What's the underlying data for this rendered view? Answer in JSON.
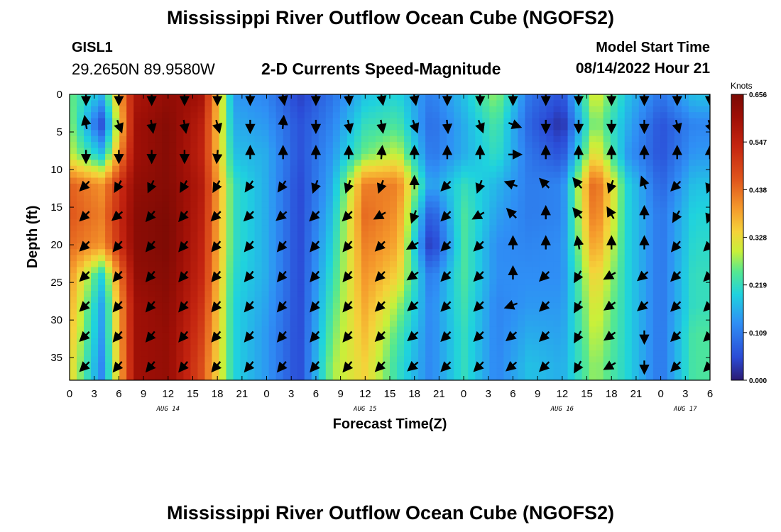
{
  "header": {
    "title": "Mississippi River Outflow Ocean Cube (NGOFS2)",
    "station_id": "GISL1",
    "station_coords": "29.2650N  89.9580W",
    "plot_title": "2-D Currents Speed-Magnitude",
    "model_start_label": "Model Start Time",
    "model_start_value": "08/14/2022 Hour 21"
  },
  "footer": {
    "title": "Mississippi River Outflow Ocean Cube (NGOFS2)"
  },
  "chart_data": {
    "type": "heatmap",
    "xlabel": "Forecast Time(Z)",
    "ylabel": "Depth (ft)",
    "x_unit": "hours since plot start",
    "xlim": [
      0,
      78
    ],
    "ylim": [
      0,
      38
    ],
    "y_inverted": true,
    "x_ticks": [
      0,
      3,
      6,
      9,
      12,
      15,
      18,
      21,
      24,
      27,
      30,
      33,
      36,
      39,
      42,
      45,
      48,
      51,
      54,
      57,
      60,
      63,
      66,
      69,
      72,
      75,
      78
    ],
    "x_tick_labels": [
      "0",
      "3",
      "6",
      "9",
      "12",
      "15",
      "18",
      "21",
      "0",
      "3",
      "6",
      "9",
      "12",
      "15",
      "18",
      "21",
      "0",
      "3",
      "6",
      "9",
      "12",
      "15",
      "18",
      "21",
      "0",
      "3",
      "6"
    ],
    "y_ticks": [
      0,
      5,
      10,
      15,
      20,
      25,
      30,
      35
    ],
    "date_labels": [
      {
        "x": 12,
        "label": "AUG 14"
      },
      {
        "x": 36,
        "label": "AUG 15"
      },
      {
        "x": 60,
        "label": "AUG 16"
      },
      {
        "x": 75,
        "label": "AUG 17"
      }
    ],
    "colorbar": {
      "title": "Knots",
      "ticks": [
        "0.656",
        "0.547",
        "0.438",
        "0.328",
        "0.219",
        "0.109",
        "0.000"
      ],
      "min": 0.0,
      "max": 0.656
    },
    "depths": [
      0,
      4,
      8,
      12,
      16,
      20,
      24,
      28,
      32,
      36
    ],
    "times": [
      0,
      4,
      8,
      12,
      16,
      20,
      24,
      28,
      32,
      36,
      40,
      44,
      48,
      52,
      56,
      60,
      64,
      68,
      72,
      76
    ],
    "speed": [
      [
        0.26,
        0.17,
        0.58,
        0.62,
        0.6,
        0.14,
        0.12,
        0.04,
        0.1,
        0.18,
        0.2,
        0.11,
        0.18,
        0.28,
        0.1,
        0.06,
        0.32,
        0.18,
        0.1,
        0.18
      ],
      [
        0.28,
        0.05,
        0.6,
        0.64,
        0.56,
        0.16,
        0.14,
        0.06,
        0.12,
        0.22,
        0.24,
        0.09,
        0.16,
        0.24,
        0.08,
        0.02,
        0.28,
        0.16,
        0.06,
        0.12
      ],
      [
        0.3,
        0.18,
        0.6,
        0.64,
        0.55,
        0.18,
        0.16,
        0.06,
        0.14,
        0.26,
        0.3,
        0.1,
        0.16,
        0.22,
        0.1,
        0.06,
        0.34,
        0.14,
        0.06,
        0.14
      ],
      [
        0.45,
        0.4,
        0.62,
        0.64,
        0.57,
        0.22,
        0.16,
        0.05,
        0.16,
        0.42,
        0.42,
        0.14,
        0.22,
        0.17,
        0.11,
        0.12,
        0.46,
        0.2,
        0.08,
        0.18
      ],
      [
        0.46,
        0.42,
        0.63,
        0.65,
        0.56,
        0.22,
        0.16,
        0.05,
        0.18,
        0.44,
        0.4,
        0.06,
        0.24,
        0.15,
        0.11,
        0.12,
        0.44,
        0.2,
        0.1,
        0.2
      ],
      [
        0.44,
        0.4,
        0.63,
        0.65,
        0.55,
        0.22,
        0.16,
        0.05,
        0.2,
        0.42,
        0.38,
        0.02,
        0.24,
        0.13,
        0.12,
        0.13,
        0.4,
        0.2,
        0.1,
        0.21
      ],
      [
        0.4,
        0.2,
        0.62,
        0.64,
        0.54,
        0.21,
        0.16,
        0.05,
        0.22,
        0.4,
        0.34,
        0.1,
        0.24,
        0.13,
        0.13,
        0.13,
        0.35,
        0.2,
        0.1,
        0.22
      ],
      [
        0.38,
        0.15,
        0.6,
        0.63,
        0.52,
        0.2,
        0.15,
        0.05,
        0.24,
        0.38,
        0.28,
        0.12,
        0.23,
        0.12,
        0.14,
        0.14,
        0.32,
        0.2,
        0.1,
        0.22
      ],
      [
        0.36,
        0.14,
        0.6,
        0.62,
        0.5,
        0.2,
        0.14,
        0.05,
        0.26,
        0.36,
        0.24,
        0.12,
        0.22,
        0.12,
        0.16,
        0.15,
        0.3,
        0.2,
        0.1,
        0.24
      ],
      [
        0.34,
        0.12,
        0.6,
        0.62,
        0.48,
        0.2,
        0.14,
        0.05,
        0.28,
        0.34,
        0.22,
        0.12,
        0.22,
        0.12,
        0.18,
        0.16,
        0.28,
        0.2,
        0.1,
        0.24
      ]
    ],
    "vector_times": [
      2,
      6,
      10,
      14,
      18,
      22,
      26,
      30,
      34,
      38,
      42,
      46,
      50,
      54,
      58,
      62,
      66,
      70,
      74,
      78
    ],
    "vector_depths": [
      0,
      4,
      8,
      12,
      16,
      20,
      24,
      28,
      32,
      36
    ],
    "vector_direction_deg": [
      [
        90,
        90,
        90,
        90,
        90,
        90,
        80,
        90,
        85,
        80,
        80,
        90,
        90,
        90,
        90,
        90,
        90,
        90,
        90,
        90
      ],
      [
        260,
        70,
        80,
        80,
        75,
        90,
        275,
        90,
        80,
        80,
        70,
        85,
        70,
        20,
        90,
        90,
        90,
        90,
        75,
        70
      ],
      [
        90,
        90,
        90,
        90,
        95,
        270,
        270,
        270,
        270,
        275,
        270,
        270,
        270,
        0,
        270,
        270,
        270,
        270,
        270,
        270
      ],
      [
        135,
        120,
        115,
        120,
        120,
        125,
        125,
        110,
        110,
        110,
        270,
        135,
        110,
        200,
        225,
        230,
        110,
        250,
        135,
        110
      ],
      [
        135,
        140,
        130,
        130,
        135,
        135,
        140,
        135,
        135,
        150,
        110,
        135,
        150,
        225,
        270,
        230,
        240,
        270,
        120,
        110
      ],
      [
        135,
        130,
        130,
        130,
        130,
        130,
        130,
        130,
        130,
        135,
        150,
        135,
        135,
        270,
        270,
        260,
        270,
        270,
        130,
        135
      ],
      [
        135,
        130,
        130,
        130,
        130,
        130,
        130,
        130,
        130,
        135,
        145,
        135,
        135,
        270,
        135,
        120,
        150,
        140,
        135,
        135
      ],
      [
        135,
        130,
        130,
        130,
        130,
        130,
        130,
        130,
        130,
        135,
        140,
        135,
        135,
        160,
        135,
        120,
        145,
        140,
        135,
        135
      ],
      [
        135,
        130,
        130,
        130,
        130,
        130,
        130,
        130,
        130,
        135,
        140,
        135,
        135,
        140,
        135,
        120,
        145,
        90,
        135,
        135
      ],
      [
        135,
        130,
        130,
        130,
        130,
        130,
        130,
        130,
        130,
        135,
        140,
        135,
        135,
        140,
        135,
        120,
        150,
        90,
        135,
        135
      ]
    ]
  }
}
